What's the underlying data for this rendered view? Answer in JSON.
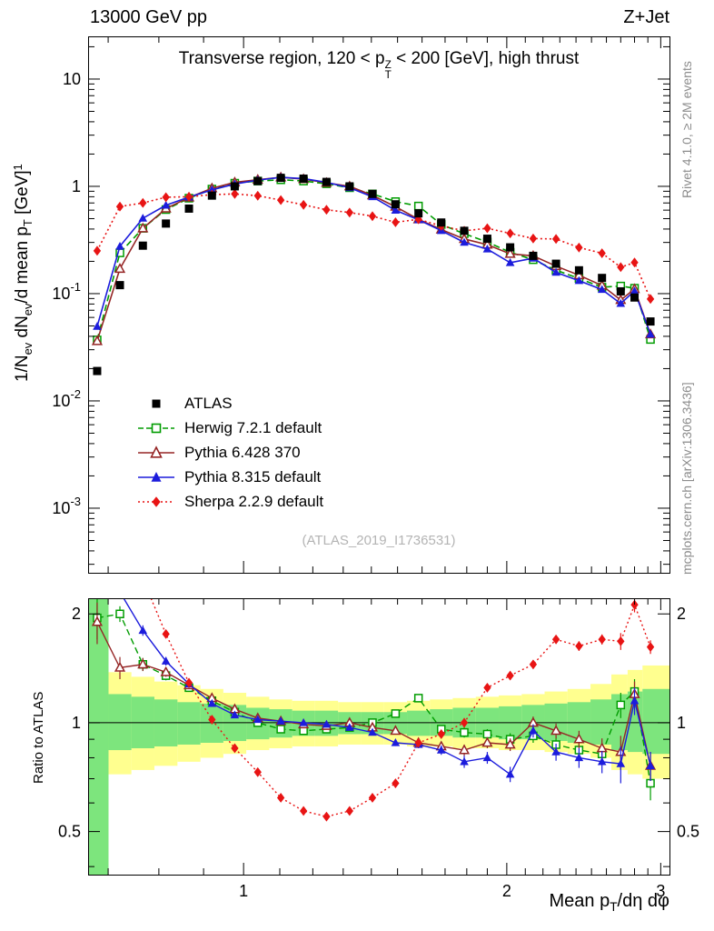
{
  "header": {
    "left": "13000 GeV pp",
    "right": "Z+Jet"
  },
  "side": {
    "rivet": "Rivet 4.1.0, ≥ 2M events",
    "mcplots": "mcplots.cern.ch [arXiv:1306.3436]"
  },
  "main_panel": {
    "title_segments": [
      {
        "t": "Transverse region, 120 < p"
      },
      {
        "stack": {
          "sup": "Z",
          "sub": "T"
        }
      },
      {
        "t": " < 200 [GeV], high thrust"
      }
    ],
    "ylabel_segments": [
      {
        "t": "1/N"
      },
      {
        "t": "ev",
        "style": "sub"
      },
      {
        "t": " dN"
      },
      {
        "t": "ev",
        "style": "sub"
      },
      {
        "t": "/d mean p"
      },
      {
        "t": "T",
        "style": "sub"
      },
      {
        "t": " [GeV]"
      },
      {
        "t": "1",
        "style": "sup"
      }
    ],
    "watermark": "(ATLAS_2019_I1736531)",
    "y_ticks": [
      {
        "v": 10,
        "base": "10"
      },
      {
        "v": 1,
        "base": "1"
      },
      {
        "v": 0.1,
        "base": "10",
        "exp": "-1"
      },
      {
        "v": 0.01,
        "base": "10",
        "exp": "-2"
      },
      {
        "v": 0.001,
        "base": "10",
        "exp": "-3"
      }
    ]
  },
  "ratio_panel": {
    "ylabel": "Ratio to ATLAS",
    "y_ticks": [
      {
        "v": 2,
        "l": "2"
      },
      {
        "v": 1,
        "l": "1"
      },
      {
        "v": 0.5,
        "l": "0.5"
      }
    ],
    "y_minor": [
      0.4,
      0.6,
      0.7,
      0.8,
      0.9
    ]
  },
  "x_axis": {
    "label_segments": [
      {
        "t": "Mean p"
      },
      {
        "t": "T",
        "style": "sub"
      },
      {
        "t": "/dη dφ"
      }
    ],
    "ticks": [
      {
        "v": 1,
        "l": "1"
      },
      {
        "v": 2,
        "l": "2"
      },
      {
        "v": 3,
        "l": "3"
      }
    ],
    "min": 0.664,
    "max": 3.07,
    "scale": "log"
  },
  "chart_data": {
    "type": "line",
    "x_scale": "log",
    "y_scale": "log",
    "main_ylim": [
      0.00025,
      25
    ],
    "ratio_ylim": [
      0.38,
      2.21
    ],
    "x": [
      0.68,
      0.722,
      0.767,
      0.815,
      0.866,
      0.92,
      0.977,
      1.038,
      1.103,
      1.171,
      1.244,
      1.322,
      1.404,
      1.492,
      1.585,
      1.683,
      1.788,
      1.9,
      2.018,
      2.144,
      2.277,
      2.419,
      2.57,
      2.7,
      2.8,
      2.92
    ],
    "atlas": {
      "label": "ATLAS",
      "color": "#000000",
      "marker": "square-filled",
      "line": "none",
      "values": [
        0.019,
        0.12,
        0.28,
        0.45,
        0.62,
        0.82,
        1.0,
        1.12,
        1.2,
        1.18,
        1.1,
        1.0,
        0.85,
        0.68,
        0.56,
        0.46,
        0.385,
        0.325,
        0.27,
        0.225,
        0.19,
        0.165,
        0.14,
        0.105,
        0.092,
        0.055
      ]
    },
    "mc_series": [
      {
        "label": "Herwig 7.2.1 default",
        "color": "#009c00",
        "marker": "square-open",
        "line": "dashed",
        "ratio_to_atlas": [
          1.95,
          2.0,
          1.45,
          1.35,
          1.25,
          1.15,
          1.07,
          1.0,
          0.96,
          0.95,
          0.96,
          0.97,
          1.0,
          1.06,
          1.17,
          0.96,
          0.94,
          0.93,
          0.9,
          0.92,
          0.87,
          0.84,
          0.82,
          1.12,
          1.22,
          0.68
        ]
      },
      {
        "label": "Pythia 6.428 370",
        "color": "#952525",
        "marker": "triangle-open",
        "line": "solid",
        "ratio_to_atlas": [
          1.9,
          1.42,
          1.45,
          1.38,
          1.27,
          1.17,
          1.09,
          1.03,
          1.01,
          0.99,
          0.98,
          1.0,
          0.97,
          0.95,
          0.88,
          0.86,
          0.84,
          0.88,
          0.87,
          1.0,
          0.95,
          0.9,
          0.85,
          0.83,
          1.2,
          0.76
        ]
      },
      {
        "label": "Pythia 8.315 default",
        "color": "#1c1cdc",
        "marker": "triangle-filled",
        "line": "solid",
        "ratio_to_atlas": [
          2.6,
          2.3,
          1.8,
          1.48,
          1.28,
          1.13,
          1.05,
          1.02,
          1.01,
          1.0,
          0.99,
          0.97,
          0.94,
          0.88,
          0.87,
          0.84,
          0.78,
          0.8,
          0.72,
          0.95,
          0.83,
          0.8,
          0.78,
          0.77,
          1.15,
          0.76
        ]
      },
      {
        "label": "Sherpa 2.2.9 default",
        "color": "#e81414",
        "marker": "diamond-filled",
        "line": "dotted",
        "ratio_to_atlas": [
          13.2,
          5.4,
          2.5,
          1.76,
          1.29,
          1.02,
          0.85,
          0.73,
          0.62,
          0.57,
          0.55,
          0.57,
          0.62,
          0.68,
          0.88,
          0.93,
          1.0,
          1.25,
          1.35,
          1.45,
          1.7,
          1.63,
          1.7,
          1.68,
          2.12,
          1.62
        ]
      }
    ],
    "ratio_err": [
      0.25,
      0.1,
      0.06,
      0.04,
      0.03,
      0.02,
      0.015,
      0.012,
      0.01,
      0.01,
      0.01,
      0.012,
      0.015,
      0.018,
      0.02,
      0.025,
      0.03,
      0.03,
      0.035,
      0.04,
      0.045,
      0.05,
      0.055,
      0.09,
      0.1,
      0.07
    ],
    "bands": {
      "yellow": {
        "color": "#ffff8f",
        "lo": [
          0.55,
          0.72,
          0.74,
          0.76,
          0.78,
          0.8,
          0.82,
          0.84,
          0.85,
          0.86,
          0.86,
          0.87,
          0.87,
          0.87,
          0.86,
          0.86,
          0.85,
          0.85,
          0.84,
          0.84,
          0.83,
          0.82,
          0.8,
          0.74,
          0.72,
          0.7
        ],
        "hi": [
          1.8,
          1.38,
          1.34,
          1.3,
          1.27,
          1.24,
          1.21,
          1.18,
          1.16,
          1.15,
          1.15,
          1.14,
          1.14,
          1.14,
          1.15,
          1.16,
          1.17,
          1.18,
          1.19,
          1.2,
          1.22,
          1.24,
          1.28,
          1.36,
          1.4,
          1.44
        ]
      },
      "green": {
        "color": "#7de57d",
        "lo": [
          0.38,
          0.84,
          0.85,
          0.86,
          0.87,
          0.88,
          0.89,
          0.9,
          0.91,
          0.92,
          0.92,
          0.93,
          0.93,
          0.93,
          0.92,
          0.92,
          0.91,
          0.91,
          0.9,
          0.9,
          0.89,
          0.88,
          0.87,
          0.84,
          0.83,
          0.82
        ],
        "hi": [
          2.3,
          1.2,
          1.18,
          1.16,
          1.14,
          1.13,
          1.12,
          1.1,
          1.09,
          1.08,
          1.08,
          1.07,
          1.07,
          1.07,
          1.08,
          1.09,
          1.1,
          1.1,
          1.11,
          1.12,
          1.13,
          1.14,
          1.16,
          1.2,
          1.22,
          1.24
        ]
      }
    }
  }
}
